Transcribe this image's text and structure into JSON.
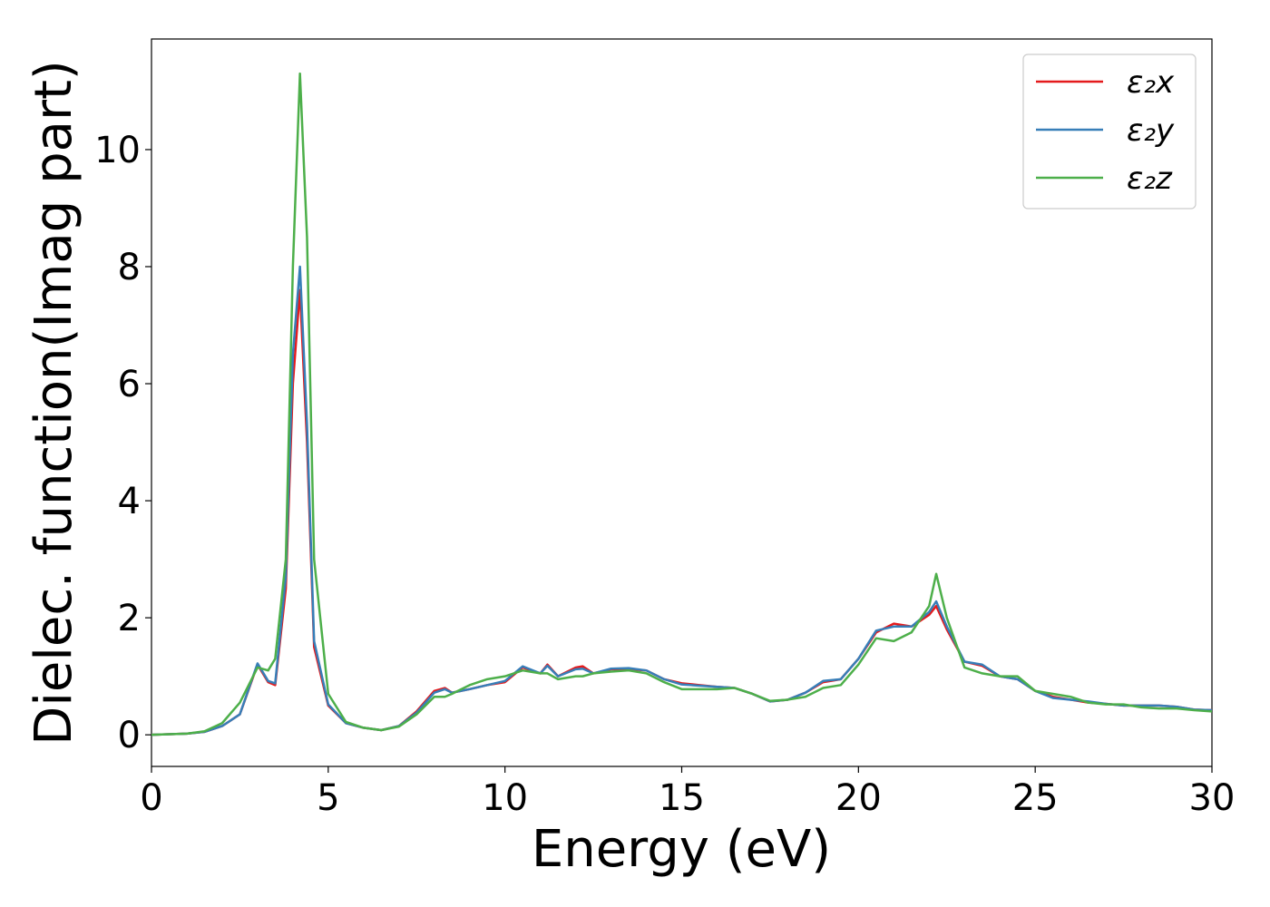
{
  "chart_data": {
    "type": "line",
    "xlabel": "Energy (eV)",
    "ylabel": "Dielec. function(Imag part)",
    "x": [
      0,
      1,
      1.5,
      2,
      2.5,
      3,
      3.3,
      3.5,
      3.8,
      4.0,
      4.2,
      4.4,
      4.6,
      5,
      5.5,
      6,
      6.5,
      7,
      7.5,
      8,
      8.3,
      8.5,
      9,
      9.5,
      10,
      10.5,
      11,
      11.2,
      11.5,
      12,
      12.2,
      12.5,
      13,
      13.5,
      14,
      14.5,
      15,
      15.5,
      16,
      16.5,
      17,
      17.5,
      18,
      18.5,
      19,
      19.5,
      20,
      20.5,
      21,
      21.5,
      22,
      22.2,
      22.5,
      23,
      23.5,
      24,
      24.5,
      25,
      25.5,
      26,
      26.5,
      27,
      27.5,
      28,
      28.5,
      29,
      29.5,
      30
    ],
    "series": [
      {
        "name": "ε₂x",
        "color": "#e41a1c",
        "values": [
          0,
          0.02,
          0.05,
          0.15,
          0.35,
          1.2,
          0.9,
          0.85,
          2.5,
          6.0,
          7.6,
          5.0,
          1.5,
          0.5,
          0.2,
          0.12,
          0.08,
          0.15,
          0.4,
          0.75,
          0.8,
          0.72,
          0.78,
          0.85,
          0.9,
          1.15,
          1.05,
          1.2,
          1.0,
          1.15,
          1.17,
          1.05,
          1.12,
          1.12,
          1.1,
          0.95,
          0.88,
          0.85,
          0.82,
          0.8,
          0.7,
          0.57,
          0.6,
          0.72,
          0.9,
          0.95,
          1.3,
          1.75,
          1.9,
          1.85,
          2.05,
          2.2,
          1.8,
          1.25,
          1.18,
          1.0,
          0.95,
          0.75,
          0.65,
          0.6,
          0.55,
          0.53,
          0.5,
          0.5,
          0.5,
          0.48,
          0.43,
          0.42
        ]
      },
      {
        "name": "ε₂y",
        "color": "#377eb8",
        "values": [
          0,
          0.02,
          0.05,
          0.15,
          0.35,
          1.22,
          0.92,
          0.88,
          2.7,
          6.5,
          8.0,
          5.3,
          1.6,
          0.52,
          0.2,
          0.12,
          0.08,
          0.15,
          0.38,
          0.72,
          0.78,
          0.72,
          0.78,
          0.85,
          0.92,
          1.17,
          1.05,
          1.18,
          1.0,
          1.12,
          1.13,
          1.05,
          1.13,
          1.14,
          1.1,
          0.95,
          0.86,
          0.84,
          0.82,
          0.8,
          0.7,
          0.57,
          0.6,
          0.72,
          0.92,
          0.95,
          1.3,
          1.78,
          1.85,
          1.85,
          2.1,
          2.28,
          1.85,
          1.25,
          1.2,
          1.0,
          0.95,
          0.75,
          0.63,
          0.6,
          0.57,
          0.53,
          0.5,
          0.5,
          0.5,
          0.48,
          0.43,
          0.42
        ]
      },
      {
        "name": "ε₂z",
        "color": "#4daf4a",
        "values": [
          0,
          0.02,
          0.06,
          0.2,
          0.55,
          1.15,
          1.1,
          1.3,
          3.0,
          8.0,
          11.3,
          8.5,
          3.0,
          0.7,
          0.22,
          0.12,
          0.08,
          0.14,
          0.35,
          0.65,
          0.65,
          0.7,
          0.85,
          0.95,
          1.0,
          1.1,
          1.05,
          1.05,
          0.95,
          1.0,
          1.0,
          1.05,
          1.08,
          1.1,
          1.05,
          0.9,
          0.78,
          0.78,
          0.78,
          0.8,
          0.7,
          0.58,
          0.6,
          0.65,
          0.8,
          0.85,
          1.2,
          1.65,
          1.6,
          1.75,
          2.2,
          2.75,
          2.0,
          1.15,
          1.05,
          1.0,
          1.0,
          0.75,
          0.7,
          0.65,
          0.55,
          0.52,
          0.52,
          0.47,
          0.45,
          0.45,
          0.42,
          0.4
        ]
      }
    ],
    "xlim": [
      0,
      30
    ],
    "xticks": [
      0,
      5,
      10,
      15,
      20,
      25,
      30
    ],
    "ylim": [
      -0.54,
      11.89
    ],
    "yticks": [
      0,
      2,
      4,
      6,
      8,
      10
    ],
    "grid": false,
    "legend_position": "upper-right"
  }
}
